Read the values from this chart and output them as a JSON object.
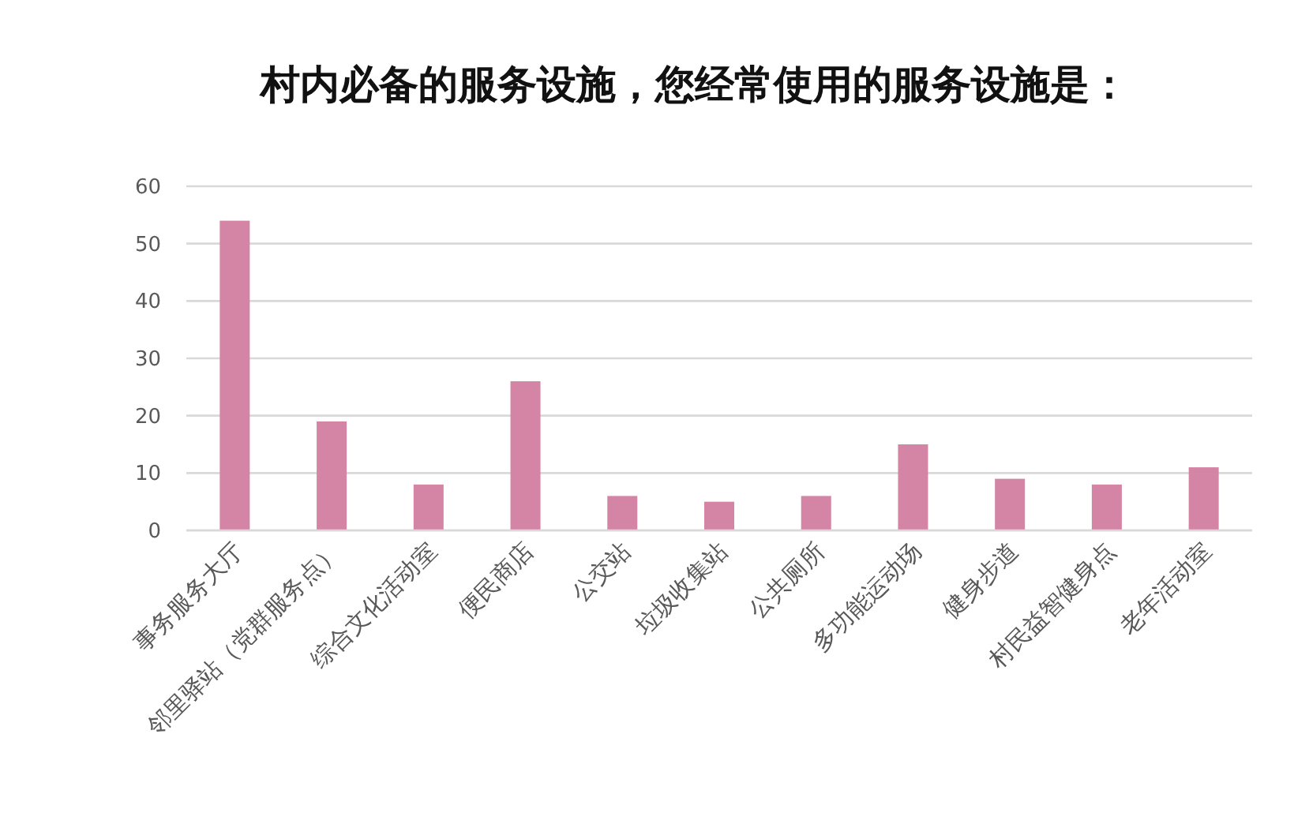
{
  "chart_data": {
    "type": "bar",
    "title": "村内必备的服务设施，您经常使用的服务设施是：",
    "categories": [
      "事务服务大厅",
      "邻里驿站（党群服务点）",
      "综合文化活动室",
      "便民商店",
      "公交站",
      "垃圾收集站",
      "公共厕所",
      "多功能运动场",
      "健身步道",
      "村民益智健身点",
      "老年活动室"
    ],
    "values": [
      54,
      19,
      8,
      26,
      6,
      5,
      6,
      15,
      9,
      8,
      11
    ],
    "color": "#d484a4",
    "ylim": [
      0,
      60
    ],
    "yticks": [
      0,
      10,
      20,
      30,
      40,
      50,
      60
    ],
    "grid": "y"
  }
}
